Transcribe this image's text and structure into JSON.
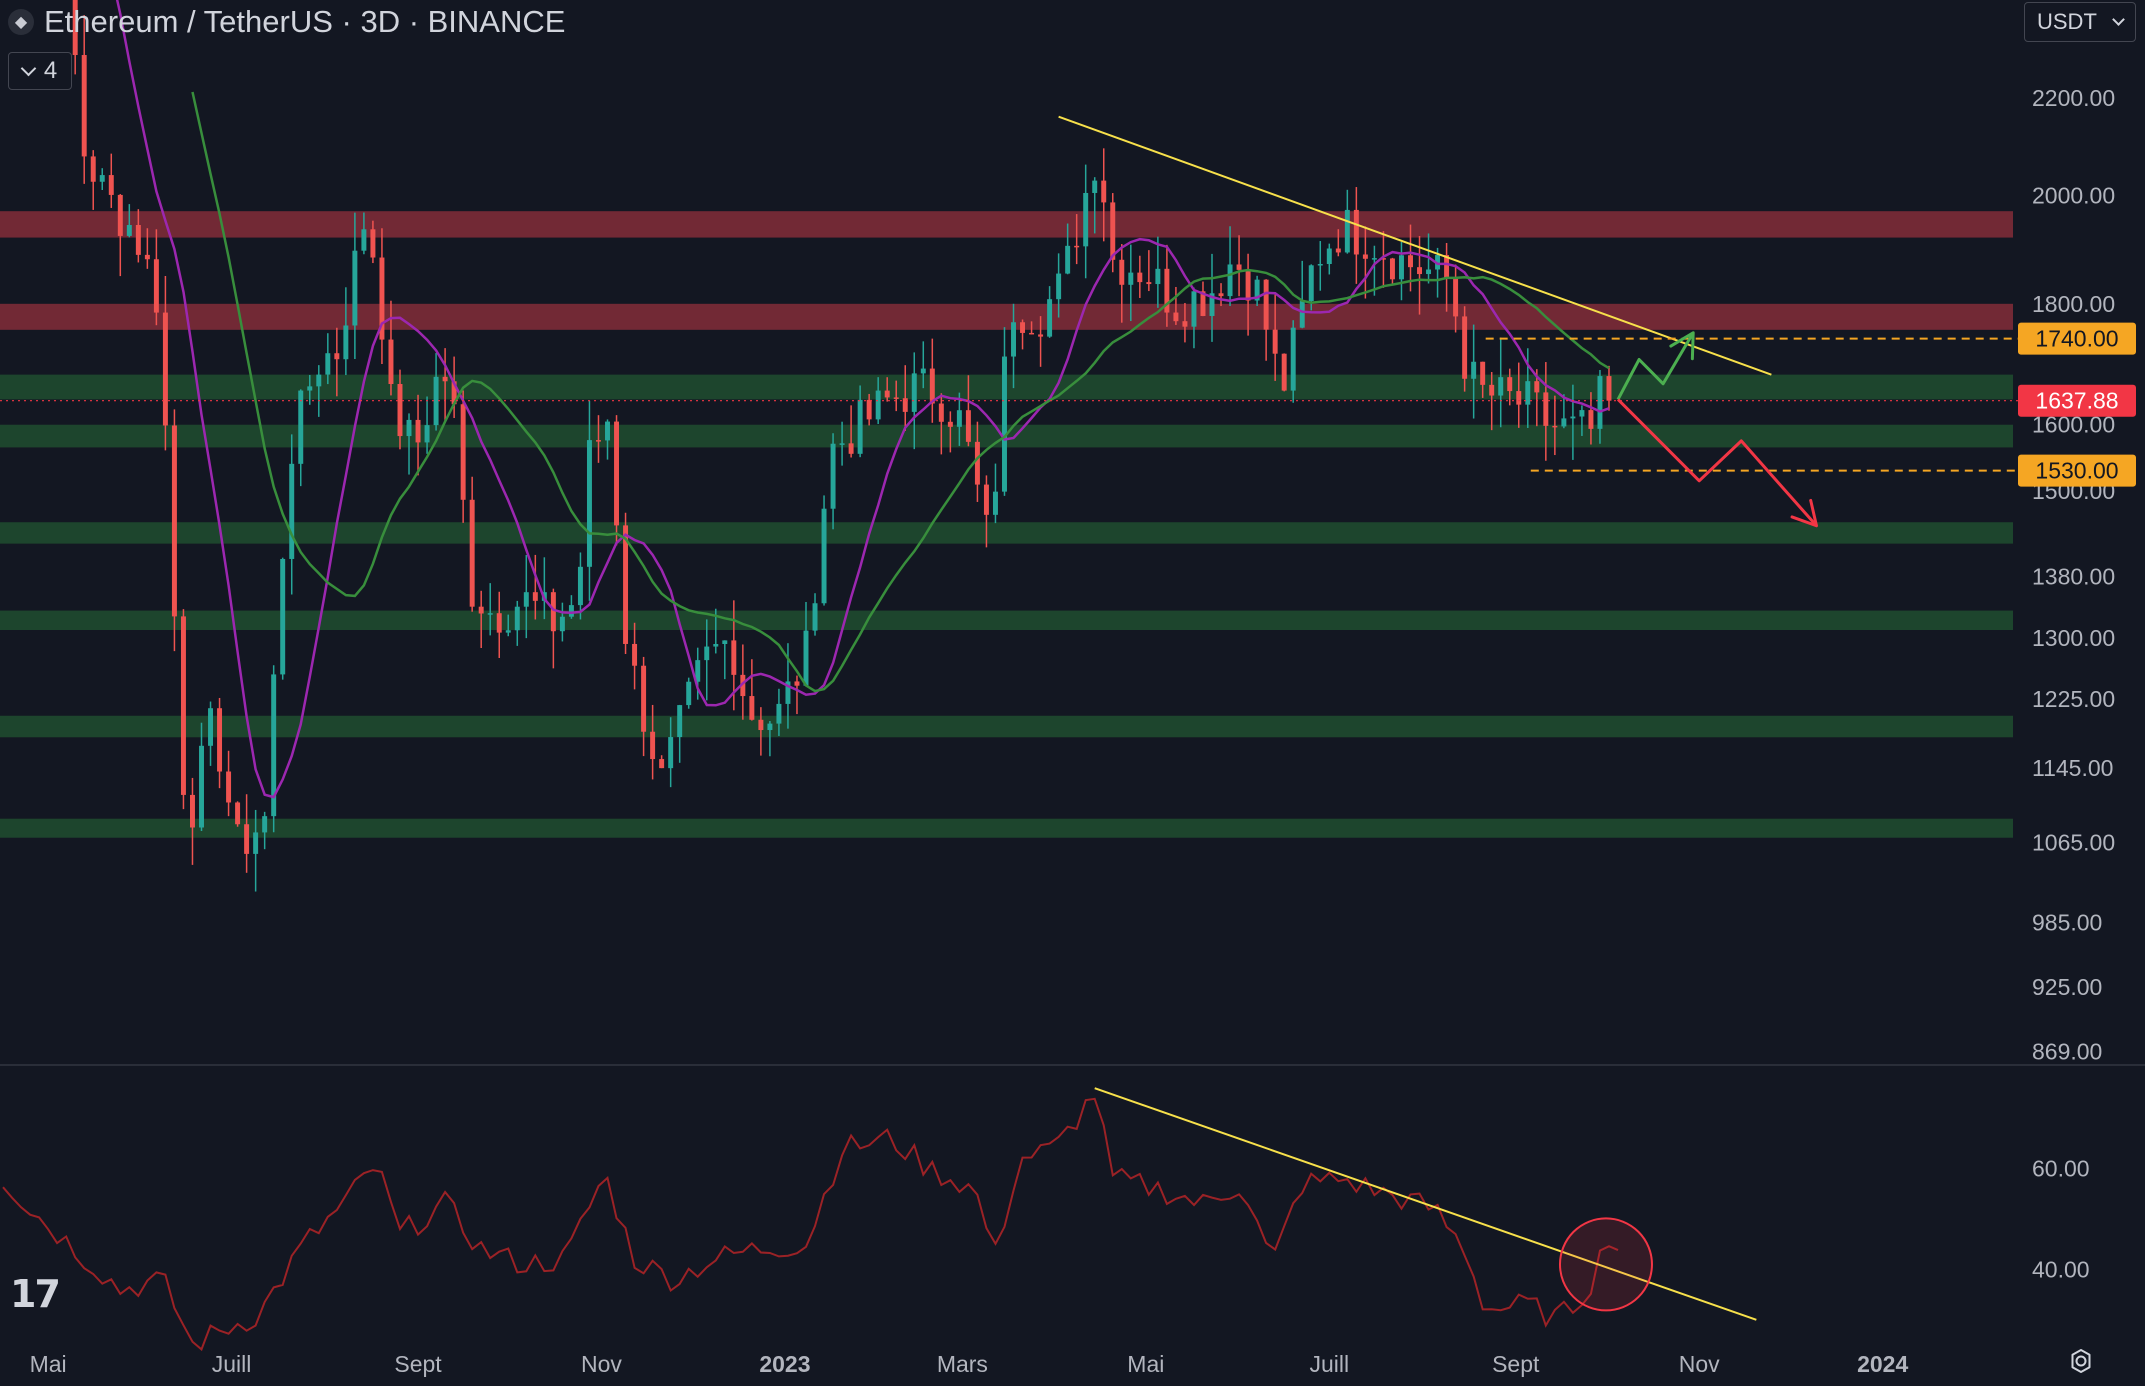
{
  "header": {
    "title": "Ethereum / TetherUS · 3D · BINANCE",
    "indicator_count": "4",
    "currency": "USDT",
    "icons": [
      "ethereum-logo-icon",
      "chevron-down-icon",
      "settings-gear-icon",
      "tradingview-logo-icon"
    ]
  },
  "chart_data": {
    "type": "candlestick",
    "symbol": "ETH/USDT",
    "timeframe": "3D",
    "exchange": "BINANCE",
    "price_scale": {
      "type": "log",
      "ticks": [
        "2200.00",
        "2000.00",
        "1800.00",
        "1600.00",
        "1500.00",
        "1380.00",
        "1300.00",
        "1225.00",
        "1145.00",
        "1065.00",
        "985.00",
        "925.00",
        "869.00"
      ],
      "range": [
        860,
        2420
      ]
    },
    "time_axis": {
      "range": [
        "2022-04-15",
        "2024-02-15"
      ],
      "labels": [
        {
          "label": "Mai",
          "date": "2022-05-01"
        },
        {
          "label": "Juill",
          "date": "2022-07-01"
        },
        {
          "label": "Sept",
          "date": "2022-09-01"
        },
        {
          "label": "Nov",
          "date": "2022-11-01"
        },
        {
          "label": "2023",
          "date": "2023-01-01",
          "bold": true
        },
        {
          "label": "Mars",
          "date": "2023-03-01"
        },
        {
          "label": "Mai",
          "date": "2023-05-01"
        },
        {
          "label": "Juill",
          "date": "2023-07-01"
        },
        {
          "label": "Sept",
          "date": "2023-09-01"
        },
        {
          "label": "Nov",
          "date": "2023-11-01"
        },
        {
          "label": "2024",
          "date": "2024-01-01",
          "bold": true
        }
      ]
    },
    "current_price": {
      "value": 1637.88,
      "label": "1637.88",
      "color": "#f23645"
    },
    "price_labels": [
      {
        "value": 1740,
        "label": "1740.00",
        "color": "#f5a623"
      },
      {
        "value": 1530,
        "label": "1530.00",
        "color": "#f5a623"
      }
    ],
    "candle_keypoints": [
      [
        "2022-04-28",
        2900
      ],
      [
        "2022-05-06",
        2700
      ],
      [
        "2022-05-12",
        2100
      ],
      [
        "2022-05-20",
        2000
      ],
      [
        "2022-05-30",
        1930
      ],
      [
        "2022-06-07",
        1800
      ],
      [
        "2022-06-13",
        1250
      ],
      [
        "2022-06-16",
        1080
      ],
      [
        "2022-06-25",
        1200
      ],
      [
        "2022-07-03",
        1060
      ],
      [
        "2022-07-12",
        1090
      ],
      [
        "2022-07-20",
        1550
      ],
      [
        "2022-07-29",
        1700
      ],
      [
        "2022-08-05",
        1720
      ],
      [
        "2022-08-14",
        1950
      ],
      [
        "2022-08-18",
        1880
      ],
      [
        "2022-08-23",
        1630
      ],
      [
        "2022-08-31",
        1560
      ],
      [
        "2022-09-09",
        1700
      ],
      [
        "2022-09-14",
        1590
      ],
      [
        "2022-09-18",
        1370
      ],
      [
        "2022-09-26",
        1330
      ],
      [
        "2022-10-06",
        1350
      ],
      [
        "2022-10-16",
        1320
      ],
      [
        "2022-10-24",
        1350
      ],
      [
        "2022-10-28",
        1550
      ],
      [
        "2022-11-04",
        1620
      ],
      [
        "2022-11-08",
        1330
      ],
      [
        "2022-11-12",
        1250
      ],
      [
        "2022-11-21",
        1130
      ],
      [
        "2022-11-28",
        1200
      ],
      [
        "2022-12-05",
        1270
      ],
      [
        "2022-12-14",
        1300
      ],
      [
        "2022-12-20",
        1210
      ],
      [
        "2022-12-29",
        1200
      ],
      [
        "2023-01-08",
        1280
      ],
      [
        "2023-01-16",
        1560
      ],
      [
        "2023-01-26",
        1600
      ],
      [
        "2023-02-05",
        1640
      ],
      [
        "2023-02-14",
        1660
      ],
      [
        "2023-02-21",
        1650
      ],
      [
        "2023-03-01",
        1600
      ],
      [
        "2023-03-10",
        1420
      ],
      [
        "2023-03-17",
        1800
      ],
      [
        "2023-03-26",
        1780
      ],
      [
        "2023-04-03",
        1830
      ],
      [
        "2023-04-15",
        2100
      ],
      [
        "2023-04-20",
        1880
      ],
      [
        "2023-05-01",
        1860
      ],
      [
        "2023-05-11",
        1800
      ],
      [
        "2023-05-22",
        1820
      ],
      [
        "2023-05-30",
        1880
      ],
      [
        "2023-06-06",
        1840
      ],
      [
        "2023-06-11",
        1740
      ],
      [
        "2023-06-15",
        1650
      ],
      [
        "2023-06-20",
        1740
      ],
      [
        "2023-06-26",
        1880
      ],
      [
        "2023-07-05",
        1940
      ],
      [
        "2023-07-14",
        1920
      ],
      [
        "2023-07-24",
        1880
      ],
      [
        "2023-08-02",
        1860
      ],
      [
        "2023-08-10",
        1840
      ],
      [
        "2023-08-16",
        1680
      ],
      [
        "2023-08-21",
        1650
      ],
      [
        "2023-08-29",
        1640
      ],
      [
        "2023-09-06",
        1630
      ],
      [
        "2023-09-12",
        1600
      ],
      [
        "2023-09-20",
        1590
      ],
      [
        "2023-09-26",
        1590
      ],
      [
        "2023-10-01",
        1670
      ],
      [
        "2023-10-04",
        1637.88
      ]
    ],
    "moving_averages": [
      {
        "name": "fast",
        "color": "#9c27b0",
        "period": 9
      },
      {
        "name": "slow",
        "color": "#388e3c",
        "period": 21
      }
    ],
    "zones": [
      {
        "type": "resistance",
        "low": 1920,
        "high": 1970,
        "color": "#7d2b37"
      },
      {
        "type": "resistance",
        "low": 1755,
        "high": 1800,
        "color": "#7d2b37"
      },
      {
        "type": "support",
        "low": 1640,
        "high": 1680,
        "color": "#1f4a2f"
      },
      {
        "type": "support",
        "low": 1565,
        "high": 1600,
        "color": "#1f4a2f"
      },
      {
        "type": "support",
        "low": 1425,
        "high": 1455,
        "color": "#1f4a2f"
      },
      {
        "type": "support",
        "low": 1310,
        "high": 1335,
        "color": "#1f4a2f"
      },
      {
        "type": "support",
        "low": 1180,
        "high": 1205,
        "color": "#1f4a2f"
      },
      {
        "type": "support",
        "low": 1070,
        "high": 1090,
        "color": "#1f4a2f"
      }
    ],
    "trendline": {
      "color": "#f7e04b",
      "points": [
        [
          "2023-04-02",
          2160
        ],
        [
          "2023-11-25",
          1680
        ]
      ]
    },
    "dashed_levels": [
      {
        "value": 1740,
        "from": "2023-08-22",
        "color": "#f5a623"
      },
      {
        "value": 1530,
        "from": "2023-09-06",
        "color": "#f5a623"
      }
    ],
    "scenarios": [
      {
        "name": "bullish",
        "color": "#4caf50",
        "points": [
          [
            "2023-10-05",
            1640
          ],
          [
            "2023-10-12",
            1705
          ],
          [
            "2023-10-20",
            1665
          ],
          [
            "2023-10-30",
            1750
          ]
        ]
      },
      {
        "name": "bearish",
        "color": "#f23645",
        "points": [
          [
            "2023-10-05",
            1640
          ],
          [
            "2023-11-01",
            1515
          ],
          [
            "2023-11-15",
            1575
          ],
          [
            "2023-12-10",
            1450
          ]
        ]
      }
    ],
    "rsi": {
      "ticks": [
        60,
        40
      ],
      "range": [
        25,
        80
      ],
      "color": "#9b2226",
      "keypoints": [
        [
          "2022-04-16",
          58
        ],
        [
          "2022-04-25",
          52
        ],
        [
          "2022-05-10",
          44
        ],
        [
          "2022-05-25",
          36
        ],
        [
          "2022-06-08",
          38
        ],
        [
          "2022-06-18",
          25
        ],
        [
          "2022-06-28",
          28
        ],
        [
          "2022-07-10",
          31
        ],
        [
          "2022-07-25",
          45
        ],
        [
          "2022-08-06",
          52
        ],
        [
          "2022-08-18",
          61
        ],
        [
          "2022-08-26",
          47
        ],
        [
          "2022-09-10",
          53
        ],
        [
          "2022-09-22",
          44
        ],
        [
          "2022-10-06",
          41
        ],
        [
          "2022-10-20",
          42
        ],
        [
          "2022-11-02",
          59
        ],
        [
          "2022-11-12",
          42
        ],
        [
          "2022-11-25",
          38
        ],
        [
          "2022-12-08",
          42
        ],
        [
          "2022-12-22",
          44
        ],
        [
          "2023-01-08",
          45
        ],
        [
          "2023-01-20",
          64
        ],
        [
          "2023-02-05",
          66
        ],
        [
          "2023-02-18",
          60
        ],
        [
          "2023-03-05",
          56
        ],
        [
          "2023-03-12",
          43
        ],
        [
          "2023-03-20",
          62
        ],
        [
          "2023-04-01",
          64
        ],
        [
          "2023-04-14",
          75
        ],
        [
          "2023-04-20",
          58
        ],
        [
          "2023-05-05",
          56
        ],
        [
          "2023-05-20",
          53
        ],
        [
          "2023-06-02",
          57
        ],
        [
          "2023-06-12",
          41
        ],
        [
          "2023-06-22",
          57
        ],
        [
          "2023-07-05",
          58
        ],
        [
          "2023-07-20",
          55
        ],
        [
          "2023-08-05",
          52
        ],
        [
          "2023-08-15",
          44
        ],
        [
          "2023-08-22",
          32
        ],
        [
          "2023-09-05",
          33
        ],
        [
          "2023-09-15",
          30
        ],
        [
          "2023-09-25",
          36
        ],
        [
          "2023-10-02",
          47
        ],
        [
          "2023-10-06",
          43
        ]
      ],
      "trendline": {
        "color": "#f7e04b",
        "points": [
          [
            "2023-04-14",
            76
          ],
          [
            "2023-11-20",
            30
          ]
        ]
      },
      "highlight_circle": {
        "date": "2023-10-01",
        "value": 41,
        "color": "#f23645"
      }
    }
  }
}
